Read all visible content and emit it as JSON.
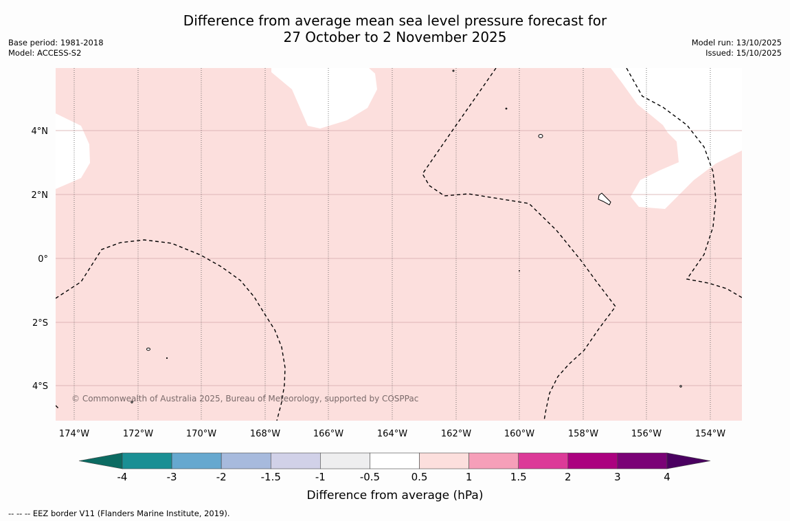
{
  "title": {
    "line1": "Difference from average mean sea level pressure forecast for",
    "line2": "27 October to 2 November 2025"
  },
  "meta": {
    "base_period": "Base period: 1981-2018",
    "model": "Model: ACCESS-S2",
    "model_run": "Model run: 13/10/2025",
    "issued": "Issued: 15/10/2025"
  },
  "map": {
    "lon_labels": [
      "174°W",
      "172°W",
      "170°W",
      "168°W",
      "166°W",
      "164°W",
      "162°W",
      "160°W",
      "158°W",
      "156°W",
      "154°W"
    ],
    "lat_labels": [
      "4°N",
      "2°N",
      "0°",
      "2°S",
      "4°S"
    ],
    "copyright": "© Commonwealth of Australia 2025, Bureau of Meteorology, supported by COSPPac",
    "fill_color": "#fcdfdd",
    "fill_range": "0.5 to 1 hPa"
  },
  "colorbar": {
    "ticks": [
      "-4",
      "-3",
      "-2",
      "-1.5",
      "-1",
      "-0.5",
      "0.5",
      "1",
      "1.5",
      "2",
      "3",
      "4"
    ],
    "colors": [
      "#1a8f94",
      "#66a8cf",
      "#a7badd",
      "#d1d1e8",
      "#eeeeef",
      "#ffffff",
      "#fcdfdd",
      "#f69fb9",
      "#dc3a98",
      "#ab017f",
      "#7a0276"
    ],
    "under_color": "#0c6b62",
    "over_color": "#4a0060",
    "label": "Difference from average (hPa)"
  },
  "footer": {
    "legend_symbol": "-- -- --",
    "legend_text": "EEZ border V11 (Flanders Marine Institute, 2019)."
  }
}
